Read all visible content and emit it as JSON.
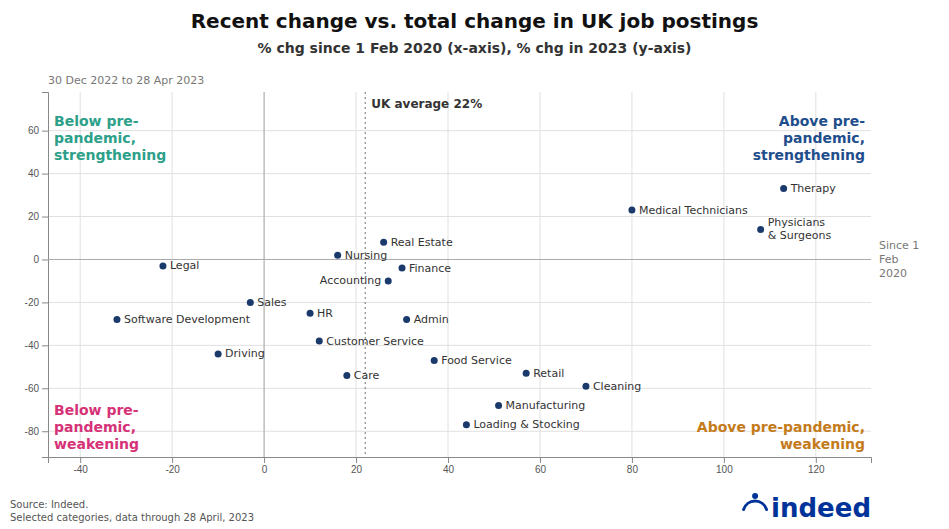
{
  "chart_data": {
    "type": "scatter",
    "title": "Recent change vs. total change in UK job postings",
    "subtitle": "% chg since 1 Feb 2020 (x-axis), % chg in 2023 (y-axis)",
    "x_label": "Since 1\nFeb\n2020",
    "y_label": "30 Dec 2022 to 28 Apr 2023",
    "point_labels": [
      "Therapy",
      "Medical Technicians",
      "Physicians\n& Surgeons",
      "Real Estate",
      "Nursing",
      "Finance",
      "Accounting",
      "Legal",
      "Sales",
      "HR",
      "Admin",
      "Software Development",
      "Customer Service",
      "Driving",
      "Food Service",
      "Care",
      "Retail",
      "Cleaning",
      "Manufacturing",
      "Loading & Stocking"
    ],
    "x": [
      113,
      80,
      108,
      26,
      16,
      30,
      27,
      -22,
      -3,
      10,
      31,
      -32,
      12,
      -10,
      37,
      18,
      57,
      70,
      51,
      44
    ],
    "values": [
      33,
      23,
      14,
      8,
      2,
      -4,
      -10,
      -3,
      -20,
      -25,
      -28,
      -28,
      -38,
      -44,
      -47,
      -54,
      -53,
      -59,
      -68,
      -77
    ],
    "color": "#1a3a6b",
    "xlim": [
      -47,
      132
    ],
    "ylim": [
      -92,
      78
    ],
    "xticks": [
      -40,
      -20,
      0,
      20,
      40,
      60,
      80,
      100,
      120
    ],
    "yticks": [
      -80,
      -60,
      -40,
      -20,
      0,
      20,
      40,
      60
    ],
    "grid": true,
    "reference_lines": [
      {
        "x": 22,
        "label": "UK average 22%"
      }
    ],
    "quadrant_labels": [
      {
        "text": "Below pre-\npandemic,\nstrengthening",
        "color": "#2ca089"
      },
      {
        "text": "Above pre-\npandemic,\nstrengthening",
        "color": "#1f4e8c"
      },
      {
        "text": "Below pre-\npandemic,\nweakening",
        "color": "#d63277"
      },
      {
        "text": "Above pre-pandemic,\nweakening",
        "color": "#c47b1a"
      }
    ],
    "source": "Source: Indeed.\nSelected categories, data through 28 April, 2023",
    "logo": {
      "text": "indeed",
      "color": "#003399"
    }
  }
}
